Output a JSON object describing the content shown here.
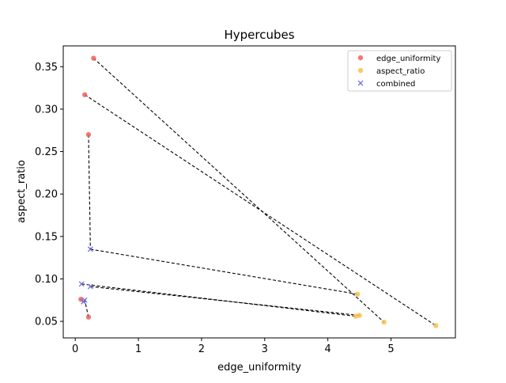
{
  "chart_data": {
    "type": "scatter",
    "title": "Hypercubes",
    "xlabel": "edge_uniformity",
    "ylabel": "aspect_ratio",
    "xlim": [
      -0.19,
      6.02
    ],
    "ylim": [
      0.0305,
      0.3745
    ],
    "xticks": [
      0,
      1,
      2,
      3,
      4,
      5
    ],
    "xtick_labels": [
      "0",
      "1",
      "2",
      "3",
      "4",
      "5"
    ],
    "yticks": [
      0.05,
      0.1,
      0.15,
      0.2,
      0.25,
      0.3,
      0.35
    ],
    "ytick_labels": [
      "0.05",
      "0.10",
      "0.15",
      "0.20",
      "0.25",
      "0.30",
      "0.35"
    ],
    "grid": false,
    "legend_position": "top-right",
    "series": [
      {
        "name": "edge_uniformity",
        "marker": "circle",
        "color": "#f0625e",
        "points": [
          [
            0.29,
            0.36
          ],
          [
            0.15,
            0.317
          ],
          [
            0.21,
            0.27
          ],
          [
            0.09,
            0.076
          ],
          [
            0.21,
            0.055
          ]
        ]
      },
      {
        "name": "aspect_ratio",
        "marker": "circle",
        "color": "#f7c152",
        "points": [
          [
            4.47,
            0.082
          ],
          [
            4.44,
            0.056
          ],
          [
            4.5,
            0.057
          ],
          [
            4.89,
            0.049
          ],
          [
            5.71,
            0.045
          ]
        ]
      },
      {
        "name": "combined",
        "marker": "x",
        "color": "#6b6bdc",
        "points": [
          [
            0.24,
            0.135
          ],
          [
            0.1,
            0.094
          ],
          [
            0.24,
            0.091
          ],
          [
            0.13,
            0.073
          ],
          [
            0.15,
            0.075
          ]
        ]
      }
    ],
    "connectors": [
      {
        "from": [
          0.29,
          0.36
        ],
        "to": [
          4.89,
          0.049
        ]
      },
      {
        "from": [
          0.15,
          0.317
        ],
        "to": [
          5.71,
          0.045
        ]
      },
      {
        "from": [
          0.21,
          0.27
        ],
        "to": [
          0.24,
          0.135
        ]
      },
      {
        "from": [
          0.24,
          0.135
        ],
        "to": [
          4.47,
          0.082
        ]
      },
      {
        "from": [
          0.1,
          0.094
        ],
        "to": [
          4.44,
          0.056
        ]
      },
      {
        "from": [
          0.24,
          0.091
        ],
        "to": [
          4.5,
          0.057
        ]
      },
      {
        "from": [
          0.09,
          0.076
        ],
        "to": [
          0.13,
          0.073
        ]
      },
      {
        "from": [
          0.21,
          0.055
        ],
        "to": [
          0.15,
          0.075
        ]
      }
    ],
    "connector_color": "#000000",
    "connector_style": "dashed"
  }
}
